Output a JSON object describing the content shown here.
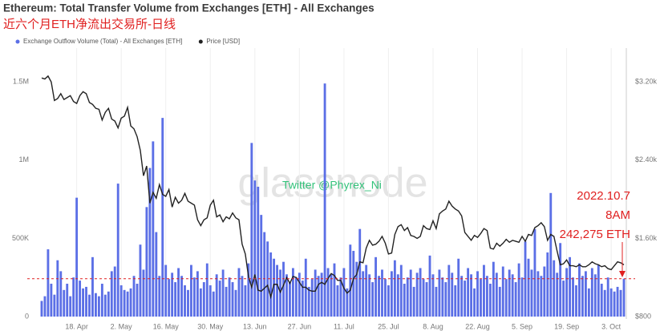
{
  "chart_data": {
    "type": "bar",
    "title": "Ethereum: Total Transfer Volume from Exchanges [ETH] - All Exchanges",
    "subtitle": "近六个月ETH净流出交易所-日线",
    "legend": "top-left",
    "categories": [
      null,
      null,
      null,
      null,
      null,
      null,
      null,
      null,
      null,
      null,
      null,
      "18. Apr",
      null,
      null,
      null,
      null,
      null,
      null,
      null,
      null,
      null,
      null,
      null,
      null,
      null,
      "2. May",
      null,
      null,
      null,
      null,
      null,
      null,
      null,
      null,
      null,
      null,
      null,
      null,
      null,
      "16. May",
      null,
      null,
      null,
      null,
      null,
      null,
      null,
      null,
      null,
      null,
      null,
      null,
      null,
      "30. May",
      null,
      null,
      null,
      null,
      null,
      null,
      null,
      null,
      null,
      null,
      null,
      null,
      null,
      "13. Jun",
      null,
      null,
      null,
      null,
      null,
      null,
      null,
      null,
      null,
      null,
      null,
      null,
      null,
      "27. Jun",
      null,
      null,
      null,
      null,
      null,
      null,
      null,
      null,
      null,
      null,
      null,
      null,
      null,
      "11. Jul",
      null,
      null,
      null,
      null,
      null,
      null,
      null,
      null,
      null,
      null,
      null,
      null,
      null,
      "25. Jul",
      null,
      null,
      null,
      null,
      null,
      null,
      null,
      null,
      null,
      null,
      null,
      null,
      null,
      "8. Aug",
      null,
      null,
      null,
      null,
      null,
      null,
      null,
      null,
      null,
      null,
      null,
      null,
      null,
      "22. Aug",
      null,
      null,
      null,
      null,
      null,
      null,
      null,
      null,
      null,
      null,
      null,
      null,
      null,
      "5. Sep",
      null,
      null,
      null,
      null,
      null,
      null,
      null,
      null,
      null,
      null,
      null,
      null,
      null,
      "19. Sep",
      null,
      null,
      null,
      null,
      null,
      null,
      null,
      null,
      null,
      null,
      null,
      null,
      null,
      "3. Oct",
      null,
      null,
      null,
      null
    ],
    "series": [
      {
        "name": "Exchange Outflow Volume (Total) - All Exchanges [ETH]",
        "color": "#5b6fe6",
        "type": "bar",
        "values": [
          100000,
          130000,
          430000,
          210000,
          140000,
          360000,
          290000,
          170000,
          210000,
          130000,
          250000,
          760000,
          230000,
          180000,
          190000,
          140000,
          380000,
          150000,
          130000,
          210000,
          140000,
          160000,
          290000,
          320000,
          850000,
          200000,
          170000,
          160000,
          180000,
          260000,
          210000,
          460000,
          300000,
          700000,
          950000,
          1120000,
          540000,
          260000,
          1270000,
          330000,
          240000,
          280000,
          220000,
          310000,
          260000,
          200000,
          170000,
          330000,
          250000,
          290000,
          180000,
          220000,
          340000,
          200000,
          160000,
          270000,
          230000,
          300000,
          190000,
          250000,
          220000,
          170000,
          310000,
          260000,
          200000,
          340000,
          1110000,
          870000,
          830000,
          650000,
          540000,
          480000,
          410000,
          370000,
          330000,
          300000,
          350000,
          270000,
          220000,
          310000,
          250000,
          280000,
          230000,
          370000,
          190000,
          240000,
          300000,
          260000,
          280000,
          1490000,
          310000,
          270000,
          340000,
          200000,
          250000,
          310000,
          180000,
          460000,
          420000,
          350000,
          560000,
          290000,
          330000,
          270000,
          220000,
          380000,
          260000,
          300000,
          240000,
          200000,
          290000,
          360000,
          270000,
          330000,
          210000,
          250000,
          300000,
          190000,
          280000,
          310000,
          240000,
          220000,
          390000,
          270000,
          190000,
          300000,
          250000,
          220000,
          330000,
          280000,
          200000,
          370000,
          260000,
          230000,
          310000,
          270000,
          180000,
          290000,
          240000,
          330000,
          260000,
          210000,
          350000,
          280000,
          190000,
          320000,
          240000,
          300000,
          270000,
          220000,
          340000,
          250000,
          480000,
          370000,
          300000,
          560000,
          290000,
          260000,
          320000,
          410000,
          790000,
          360000,
          280000,
          470000,
          230000,
          310000,
          380000,
          250000,
          200000,
          340000,
          260000,
          290000,
          180000,
          310000,
          270000,
          330000,
          210000,
          170000,
          250000,
          180000,
          160000,
          190000,
          170000,
          242275
        ]
      },
      {
        "name": "Price [USD]",
        "color": "#222222",
        "type": "line",
        "axis": "y2",
        "values": [
          3240,
          3230,
          3260,
          3200,
          3010,
          3030,
          3080,
          3020,
          3040,
          3060,
          3000,
          2980,
          3060,
          3100,
          3080,
          2990,
          2970,
          2930,
          2920,
          2810,
          2890,
          2930,
          2820,
          2800,
          2730,
          2830,
          2850,
          2940,
          2750,
          2720,
          2640,
          2500,
          2240,
          2340,
          1960,
          2070,
          2010,
          2150,
          2050,
          2030,
          2100,
          1920,
          2020,
          1960,
          1990,
          2060,
          1980,
          1960,
          1940,
          1790,
          1730,
          1790,
          1810,
          1940,
          1990,
          1820,
          1840,
          1770,
          1820,
          1800,
          1860,
          1810,
          1790,
          1540,
          1440,
          1210,
          1100,
          1230,
          1070,
          1060,
          1090,
          1120,
          1000,
          1130,
          1130,
          1050,
          1120,
          1200,
          1140,
          1210,
          1200,
          1150,
          1100,
          1100,
          1070,
          1060,
          1060,
          1130,
          1150,
          1130,
          1190,
          1240,
          1220,
          1170,
          1170,
          1090,
          1040,
          1070,
          1190,
          1230,
          1360,
          1350,
          1500,
          1580,
          1530,
          1540,
          1570,
          1620,
          1550,
          1440,
          1450,
          1640,
          1720,
          1740,
          1680,
          1710,
          1630,
          1620,
          1600,
          1620,
          1730,
          1700,
          1690,
          1780,
          1700,
          1850,
          1880,
          1900,
          1980,
          1930,
          1900,
          1880,
          1830,
          1660,
          1620,
          1580,
          1630,
          1610,
          1650,
          1700,
          1680,
          1500,
          1490,
          1550,
          1520,
          1550,
          1590,
          1560,
          1580,
          1570,
          1560,
          1620,
          1570,
          1640,
          1630,
          1710,
          1730,
          1760,
          1720,
          1580,
          1640,
          1620,
          1470,
          1330,
          1340,
          1380,
          1320,
          1320,
          1310,
          1330,
          1310,
          1310,
          1330,
          1360,
          1340,
          1330,
          1310,
          1320,
          1290,
          1280,
          1320,
          1360,
          1350,
          1330
        ]
      }
    ],
    "ylim": [
      0,
      1660000
    ],
    "yticks": [
      0,
      {
        "value": 500000,
        "label": "500K"
      },
      {
        "value": 1000000,
        "label": "1M"
      },
      {
        "value": 1500000,
        "label": "1.5M"
      }
    ],
    "y2lim": [
      800,
      3456
    ],
    "y2ticks": [
      {
        "value": 800,
        "label": "$800"
      },
      {
        "value": 1600,
        "label": "$1.60k"
      },
      {
        "value": 2400,
        "label": "$2.40k"
      },
      {
        "value": 3200,
        "label": "$3.20k"
      }
    ],
    "grid": true,
    "reference_line": {
      "value": 242275,
      "color": "#e02020"
    },
    "annotations": [
      "2022.10.7",
      "8AM",
      "242,275 ETH"
    ],
    "watermark": "glassnode",
    "credit": "Twitter @Phyrex_Ni"
  }
}
